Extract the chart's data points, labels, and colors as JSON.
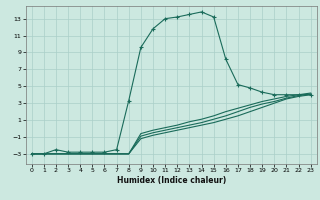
{
  "xlabel": "Humidex (Indice chaleur)",
  "background_color": "#cce8e0",
  "grid_color": "#aacfc8",
  "line_color": "#1a6b5a",
  "xlim": [
    -0.5,
    23.5
  ],
  "ylim": [
    -4.2,
    14.5
  ],
  "xticks": [
    0,
    1,
    2,
    3,
    4,
    5,
    6,
    7,
    8,
    9,
    10,
    11,
    12,
    13,
    14,
    15,
    16,
    17,
    18,
    19,
    20,
    21,
    22,
    23
  ],
  "yticks": [
    -3,
    -1,
    1,
    3,
    5,
    7,
    9,
    11,
    13
  ],
  "curve_main_x": [
    0,
    1,
    2,
    3,
    4,
    5,
    6,
    7,
    8,
    9,
    10,
    11,
    12,
    13,
    14,
    15,
    16,
    17,
    18,
    19,
    20,
    21,
    22,
    23
  ],
  "curve_main_y": [
    -3,
    -3,
    -2.5,
    -2.8,
    -2.8,
    -2.8,
    -2.8,
    -2.5,
    3.3,
    9.6,
    11.8,
    13.0,
    13.2,
    13.5,
    13.8,
    13.2,
    8.2,
    5.2,
    4.8,
    4.3,
    4.0,
    4.0,
    4.0,
    4.0
  ],
  "curve2_x": [
    0,
    1,
    2,
    3,
    4,
    5,
    6,
    7,
    8,
    9,
    10,
    11,
    12,
    13,
    14,
    15,
    16,
    17,
    18,
    19,
    20,
    21,
    22,
    23
  ],
  "curve2_y": [
    -3,
    -3,
    -3,
    -3,
    -3,
    -3,
    -3,
    -3,
    -3,
    -1.2,
    -0.8,
    -0.5,
    -0.2,
    0.1,
    0.4,
    0.7,
    1.1,
    1.5,
    2.0,
    2.5,
    3.0,
    3.5,
    3.8,
    4.0
  ],
  "curve3_x": [
    0,
    1,
    2,
    3,
    4,
    5,
    6,
    7,
    8,
    9,
    10,
    11,
    12,
    13,
    14,
    15,
    16,
    17,
    18,
    19,
    20,
    21,
    22,
    23
  ],
  "curve3_y": [
    -3,
    -3,
    -3,
    -3,
    -3,
    -3,
    -3,
    -3,
    -3,
    -0.9,
    -0.5,
    -0.2,
    0.1,
    0.4,
    0.7,
    1.1,
    1.5,
    2.0,
    2.5,
    2.9,
    3.2,
    3.6,
    3.9,
    4.1
  ],
  "curve4_x": [
    0,
    1,
    2,
    3,
    4,
    5,
    6,
    7,
    8,
    9,
    10,
    11,
    12,
    13,
    14,
    15,
    16,
    17,
    18,
    19,
    20,
    21,
    22,
    23
  ],
  "curve4_y": [
    -3,
    -3,
    -3,
    -3,
    -3,
    -3,
    -3,
    -3,
    -3,
    -0.6,
    -0.2,
    0.1,
    0.4,
    0.8,
    1.1,
    1.5,
    2.0,
    2.4,
    2.8,
    3.2,
    3.5,
    3.8,
    4.0,
    4.2
  ]
}
